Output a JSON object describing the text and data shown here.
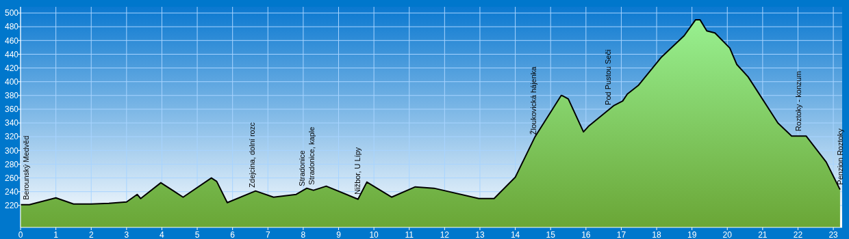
{
  "chart_data": {
    "type": "area",
    "x": [
      0,
      0.25,
      1,
      1.5,
      2,
      2.5,
      3,
      3.3,
      3.4,
      3.97,
      4.6,
      5.4,
      5.55,
      5.85,
      6.65,
      7.16,
      7.8,
      8.1,
      8.29,
      8.65,
      9.55,
      9.8,
      10.5,
      11.17,
      11.7,
      12.97,
      13.4,
      14.0,
      14.56,
      15.3,
      15.36,
      15.5,
      15.93,
      16.07,
      16.78,
      17.04,
      17.17,
      17.49,
      18.14,
      18.78,
      19.1,
      19.23,
      19.42,
      19.65,
      20.07,
      20.27,
      20.59,
      21.43,
      21.82,
      22.23,
      22.8,
      23.19
    ],
    "series": [
      {
        "color": "#6aa636",
        "values": [
          221,
          221,
          231,
          222,
          222,
          223,
          225,
          236,
          230,
          253,
          232,
          260,
          255,
          224,
          241,
          232,
          236,
          245,
          242,
          248,
          229,
          254,
          232,
          247,
          245,
          230,
          230,
          261,
          320,
          380,
          379,
          375,
          327,
          335,
          365,
          372,
          382,
          395,
          436,
          467,
          490,
          490,
          474,
          471,
          449,
          425,
          407,
          340,
          321,
          321,
          283,
          243
        ]
      }
    ],
    "xlim": [
      0,
      23.25
    ],
    "ylim": [
      188,
      509
    ],
    "xticks": [
      0,
      1,
      2,
      3,
      4,
      5,
      6,
      7,
      8,
      9,
      10,
      11,
      12,
      13,
      14,
      15,
      16,
      17,
      18,
      19,
      20,
      21,
      22,
      23
    ],
    "yticks": [
      220,
      240,
      260,
      280,
      300,
      320,
      340,
      360,
      380,
      400,
      420,
      440,
      460,
      480,
      500
    ],
    "grid": true,
    "annotations": [
      {
        "text": "Berounský Medvěd",
        "x": 0.15,
        "y": 221
      },
      {
        "text": "Zdejcina, dolní rozc",
        "x": 6.55,
        "y": 239
      },
      {
        "text": "Stradonice",
        "x": 7.96,
        "y": 241
      },
      {
        "text": "Stradonice, kaple",
        "x": 8.23,
        "y": 243
      },
      {
        "text": "Nižbor, U Lípy",
        "x": 9.53,
        "y": 229
      },
      {
        "text": "Žloukovická hájenka",
        "x": 14.52,
        "y": 316
      },
      {
        "text": "Pod Pustou Seči",
        "x": 16.63,
        "y": 359
      },
      {
        "text": "Roztoky - konzum",
        "x": 22.01,
        "y": 321
      },
      {
        "text": "Penzion Roztoky",
        "x": 23.19,
        "y": 243
      }
    ]
  }
}
